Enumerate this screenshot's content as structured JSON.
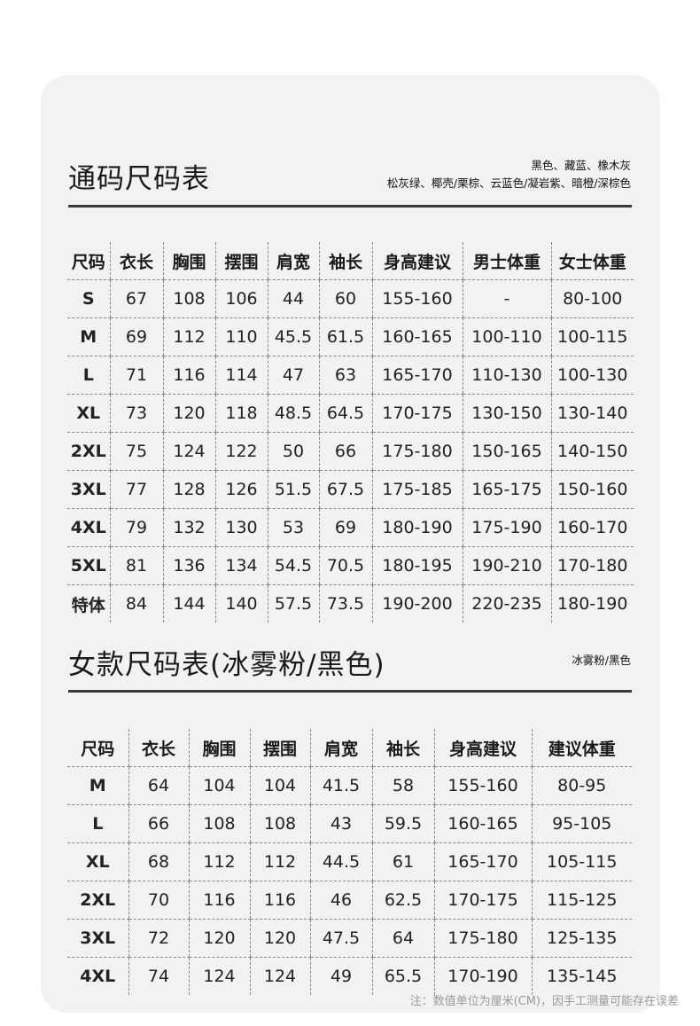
{
  "unisex": {
    "title": "通码尺码表",
    "colors_line1": "黑色、藏蓝、橡木灰",
    "colors_line2": "松灰绿、椰壳/栗棕、云蓝色/凝岩紫、暗橙/深棕色",
    "headers": [
      "尺码",
      "衣长",
      "胸围",
      "摆围",
      "肩宽",
      "袖长",
      "身高建议",
      "男士体重",
      "女士体重"
    ],
    "rows": [
      [
        "S",
        "67",
        "108",
        "106",
        "44",
        "60",
        "155-160",
        "-",
        "80-100"
      ],
      [
        "M",
        "69",
        "112",
        "110",
        "45.5",
        "61.5",
        "160-165",
        "100-110",
        "100-115"
      ],
      [
        "L",
        "71",
        "116",
        "114",
        "47",
        "63",
        "165-170",
        "110-130",
        "100-130"
      ],
      [
        "XL",
        "73",
        "120",
        "118",
        "48.5",
        "64.5",
        "170-175",
        "130-150",
        "130-140"
      ],
      [
        "2XL",
        "75",
        "124",
        "122",
        "50",
        "66",
        "175-180",
        "150-165",
        "140-150"
      ],
      [
        "3XL",
        "77",
        "128",
        "126",
        "51.5",
        "67.5",
        "175-185",
        "165-175",
        "150-160"
      ],
      [
        "4XL",
        "79",
        "132",
        "130",
        "53",
        "69",
        "180-190",
        "175-190",
        "160-170"
      ],
      [
        "5XL",
        "81",
        "136",
        "134",
        "54.5",
        "70.5",
        "180-195",
        "190-210",
        "170-180"
      ],
      [
        "特体",
        "84",
        "144",
        "140",
        "57.5",
        "73.5",
        "190-200",
        "220-235",
        "180-190"
      ]
    ]
  },
  "womens": {
    "title": "女款尺码表(冰雾粉/黑色)",
    "colors_line1": "冰雾粉/黑色",
    "headers": [
      "尺码",
      "衣长",
      "胸围",
      "摆围",
      "肩宽",
      "袖长",
      "身高建议",
      "建议体重"
    ],
    "rows": [
      [
        "M",
        "64",
        "104",
        "104",
        "41.5",
        "58",
        "155-160",
        "80-95"
      ],
      [
        "L",
        "66",
        "108",
        "108",
        "43",
        "59.5",
        "160-165",
        "95-105"
      ],
      [
        "XL",
        "68",
        "112",
        "112",
        "44.5",
        "61",
        "165-170",
        "105-115"
      ],
      [
        "2XL",
        "70",
        "116",
        "116",
        "46",
        "62.5",
        "170-175",
        "115-125"
      ],
      [
        "3XL",
        "72",
        "120",
        "120",
        "47.5",
        "64",
        "175-180",
        "125-135"
      ],
      [
        "4XL",
        "74",
        "124",
        "124",
        "49",
        "65.5",
        "170-190",
        "135-145"
      ]
    ]
  },
  "note": "注：数值单位为厘米(CM)，因手工测量可能存在误差"
}
